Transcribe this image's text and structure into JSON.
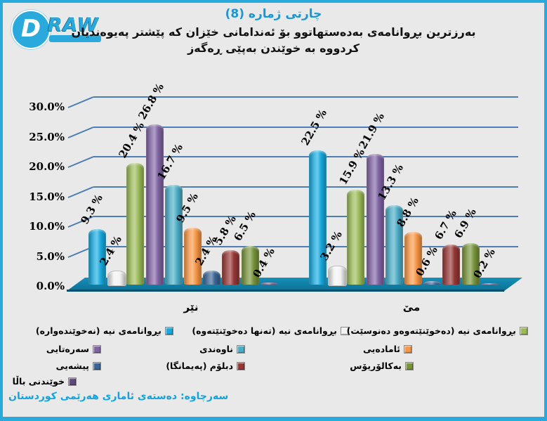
{
  "logo": {
    "d": "D",
    "raw": "RAW"
  },
  "header": {
    "chart_number": "چارتی ژماره (8)",
    "title_line1": "بەرزترین بڕوانامەی بەدەستهاتوو بۆ ئەندامانی خێزان کە پێشتر پەیوەندیان",
    "title_line2": "کردووە بە خوێندن بەپێی ڕەگەز"
  },
  "source": {
    "text": "سەرچاوە: دەستەی ئاماری هەرێمی کوردستان"
  },
  "colors": {
    "accent_cyan": "#29a9dc",
    "title_blue": "#1b96d4",
    "gridline_blue": "#4d7db5",
    "floor_teal": "#1590b8",
    "background_gray": "#e9e9e9"
  },
  "chart_data": {
    "type": "bar",
    "subtype": "3d-cylinder-clustered",
    "categories": [
      "نێر",
      "مێ"
    ],
    "series": [
      {
        "name": "بڕوانامەی نیە (نەخوێندەوارە)",
        "color": "#18a9dd",
        "values": [
          9.3,
          22.5
        ]
      },
      {
        "name": "بڕوانامەی نیە (تەنها دەخوێنێتەوە)",
        "color": "#f2f2f2",
        "values": [
          2.4,
          3.2
        ]
      },
      {
        "name": "بڕوانامەی نیە (دەخوێنێتەوەو دەنوسێت)",
        "color": "#9bbb59",
        "values": [
          20.4,
          15.9
        ]
      },
      {
        "name": "سەرەتایی",
        "color": "#8064a2",
        "values": [
          26.8,
          21.9
        ]
      },
      {
        "name": "ناوەندی",
        "color": "#4bacc6",
        "values": [
          16.7,
          13.3
        ]
      },
      {
        "name": "ئامادەیی",
        "color": "#f79646",
        "values": [
          9.5,
          8.8
        ]
      },
      {
        "name": "پیشەیی",
        "color": "#3a6494",
        "values": [
          2.4,
          0.6
        ]
      },
      {
        "name": "دبلۆم (پەیمانگا)",
        "color": "#953735",
        "values": [
          5.8,
          6.7
        ]
      },
      {
        "name": "بەکالۆریۆس",
        "color": "#77933c",
        "values": [
          6.5,
          6.9
        ]
      },
      {
        "name": "خوێندنی باڵا",
        "color": "#5f497a",
        "values": [
          0.4,
          0.2
        ]
      }
    ],
    "data_label_format": "{v} %",
    "y_ticks": [
      {
        "value": 30,
        "label": "30.0%"
      },
      {
        "value": 25,
        "label": "25.0%"
      },
      {
        "value": 20,
        "label": "20.0%"
      },
      {
        "value": 15,
        "label": "15.0%"
      },
      {
        "value": 10,
        "label": "10.0%"
      },
      {
        "value": 5,
        "label": "5.0%"
      },
      {
        "value": 0,
        "label": "0.0%"
      }
    ],
    "ylim": [
      0,
      30
    ],
    "grid": true,
    "legend_position": "bottom"
  }
}
